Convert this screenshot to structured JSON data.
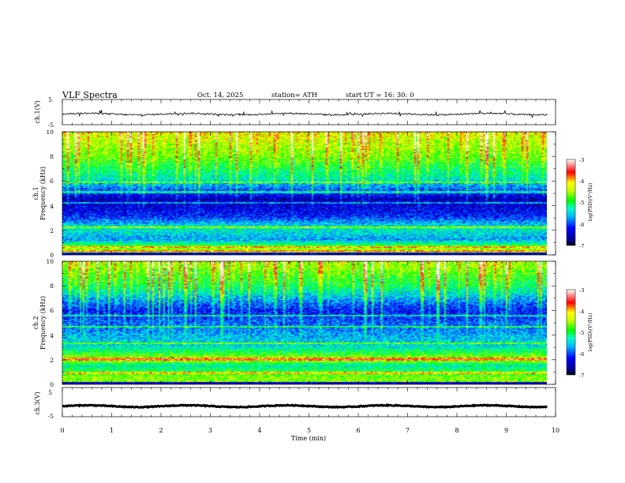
{
  "header": {
    "title": "VLF  Spectra",
    "date": "Oct. 14, 2025",
    "station": "station= ATH",
    "start": "start  UT  =   16: 30: 0"
  },
  "chart_data": [
    {
      "type": "line",
      "name": "ch1-voltage",
      "ylabel": "ch.1(V)",
      "ylim": [
        -5,
        5
      ],
      "ytick_labels": [
        "5",
        "-5"
      ],
      "x_range": [
        0,
        9.83
      ],
      "baseline_v": -0.8,
      "noise_amplitude_v": 0.6,
      "spike_amplitude_v": 2.5
    },
    {
      "type": "heatmap",
      "name": "ch1-spectrogram",
      "ylabel": "Frequency  (kHz)",
      "channel_label": "ch.1",
      "ylim": [
        0,
        10
      ],
      "ytick_labels": [
        "0",
        "2",
        "4",
        "6",
        "8",
        "10"
      ],
      "x_range": [
        0,
        9.83
      ],
      "colorbar": {
        "label": "log(PSD)(V²/Hz)",
        "range": [
          -7,
          -3
        ],
        "tick_labels": [
          "-3",
          "-4",
          "-5",
          "-6",
          "-7"
        ]
      },
      "description_profile_khz": [
        0.5,
        1.2,
        2.2,
        3.2,
        4.5,
        6,
        8,
        10
      ],
      "description_profile_logpsd": [
        -4.5,
        -5.7,
        -5.3,
        -6.2,
        -6.6,
        -5.5,
        -4.8,
        -4.4
      ]
    },
    {
      "type": "heatmap",
      "name": "ch2-spectrogram",
      "ylabel": "Frequency  (kHz)",
      "channel_label": "ch.2",
      "ylim": [
        0,
        10
      ],
      "ytick_labels": [
        "0",
        "2",
        "4",
        "6",
        "8",
        "10"
      ],
      "x_range": [
        0,
        9.83
      ],
      "colorbar": {
        "label": "log(PSD)(V²/Hz)",
        "range": [
          -7,
          -3
        ],
        "tick_labels": [
          "-3",
          "-4",
          "-5",
          "-6",
          "-7"
        ]
      },
      "description_profile_khz": [
        0.5,
        1.5,
        2,
        3,
        4,
        6,
        8,
        10
      ],
      "description_profile_logpsd": [
        -4.6,
        -5.3,
        -4.4,
        -5.4,
        -5.7,
        -6.3,
        -5.2,
        -4.6
      ]
    },
    {
      "type": "line",
      "name": "ch3-voltage",
      "ylabel": "ch.3(V)",
      "ylim": [
        -5,
        5
      ],
      "ytick_labels": [
        "5",
        "-5"
      ],
      "x_range": [
        0,
        9.83
      ],
      "baseline_v": -1.4,
      "noise_amplitude_v": 0.3
    }
  ],
  "xaxis": {
    "label": "Time  (min)",
    "range": [
      0,
      10
    ],
    "tick_labels": [
      "0",
      "1",
      "2",
      "3",
      "4",
      "5",
      "6",
      "7",
      "8",
      "9",
      "10"
    ]
  }
}
